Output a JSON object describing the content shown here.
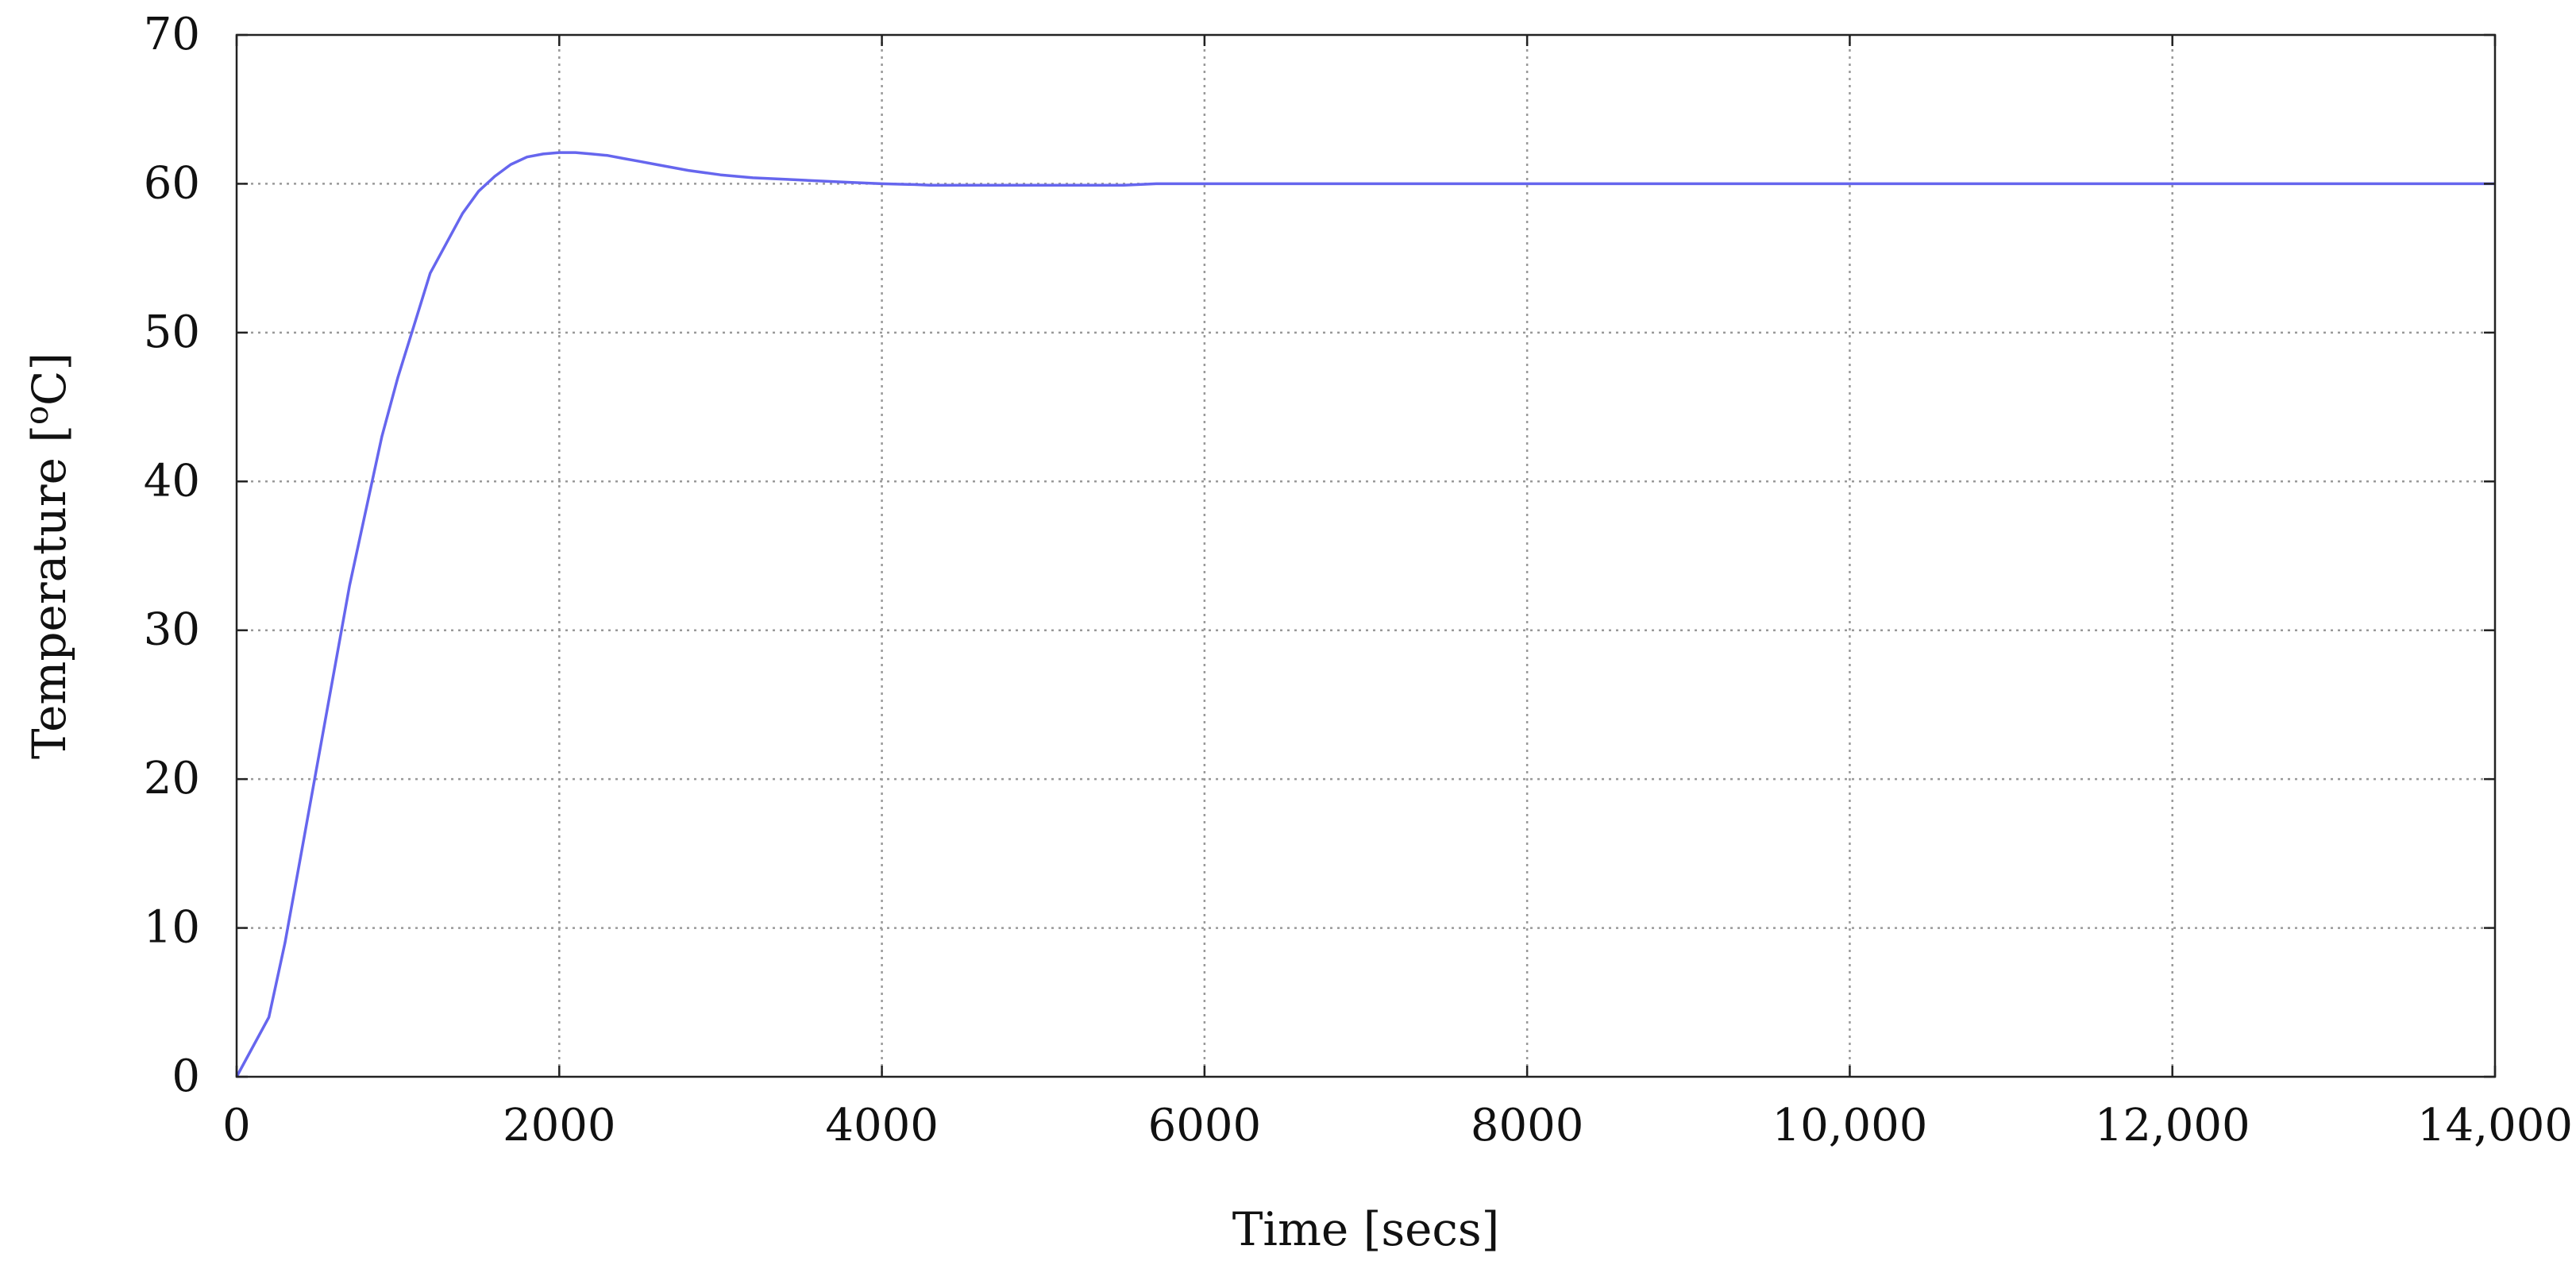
{
  "chart_data": {
    "type": "line",
    "title": "",
    "xlabel": "Time [secs]",
    "ylabel": "Temperature [",
    "ylabel_superscript": "o",
    "ylabel_unit_suffix": "C]",
    "xlim": [
      0,
      14000
    ],
    "ylim": [
      0,
      70
    ],
    "x_ticks": [
      0,
      2000,
      4000,
      6000,
      8000,
      10000,
      12000,
      14000
    ],
    "x_tick_labels": [
      "0",
      "2000",
      "4000",
      "6000",
      "8000",
      "10,000",
      "12,000",
      "14,000"
    ],
    "y_ticks": [
      0,
      10,
      20,
      30,
      40,
      50,
      60,
      70
    ],
    "y_tick_labels": [
      "0",
      "10",
      "20",
      "30",
      "40",
      "50",
      "60",
      "70"
    ],
    "grid": true,
    "legend": "none",
    "series": [
      {
        "color": "#6666ee",
        "x": [
          0,
          100,
          200,
          300,
          400,
          500,
          600,
          700,
          800,
          900,
          1000,
          1100,
          1200,
          1300,
          1400,
          1500,
          1600,
          1700,
          1800,
          1900,
          2000,
          2100,
          2200,
          2300,
          2400,
          2500,
          2600,
          2800,
          3000,
          3200,
          3400,
          3600,
          3800,
          4000,
          4200,
          4300,
          4500,
          5000,
          5500,
          5700,
          6000,
          8000,
          10000,
          12000,
          14000
        ],
        "y": [
          0,
          2,
          4,
          9,
          15,
          21,
          27,
          33,
          38,
          43,
          47,
          50.5,
          54,
          56,
          58,
          59.5,
          60.5,
          61.3,
          61.8,
          62.0,
          62.1,
          62.1,
          62.0,
          61.9,
          61.7,
          61.5,
          61.3,
          60.9,
          60.6,
          60.4,
          60.3,
          60.2,
          60.1,
          60.0,
          59.95,
          59.9,
          59.9,
          59.9,
          59.9,
          60.0,
          60.0,
          60.0,
          60.0,
          60.0,
          60.0
        ]
      }
    ]
  }
}
